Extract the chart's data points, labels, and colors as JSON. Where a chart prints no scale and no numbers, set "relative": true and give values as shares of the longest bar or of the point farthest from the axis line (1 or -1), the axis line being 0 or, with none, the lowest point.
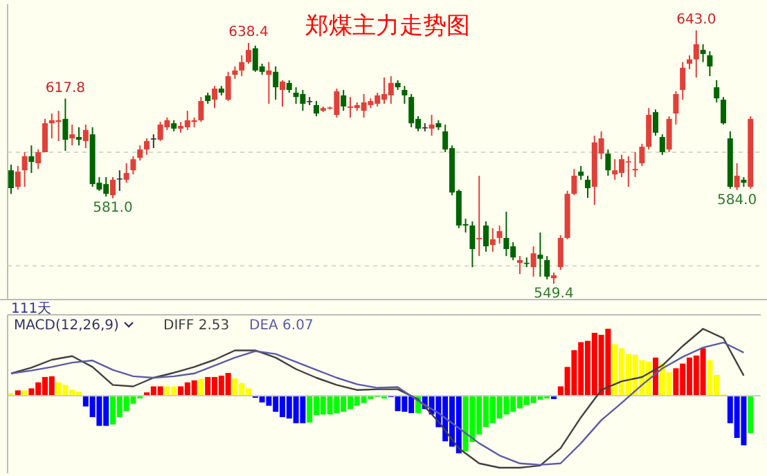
{
  "chart_data": [
    {
      "type": "candlestick",
      "title": "郑煤主力走势图",
      "grid": "y",
      "yticks": [
        {
          "value": 598,
          "label": null
        },
        {
          "value": 556,
          "label": null
        }
      ],
      "categories": [
        null,
        null,
        null,
        null,
        null,
        null,
        null,
        null,
        null,
        null,
        null,
        null,
        null,
        null,
        null,
        null,
        null,
        null,
        null,
        null,
        null,
        null,
        null,
        null,
        null,
        null,
        null,
        null,
        null,
        null,
        null,
        null,
        null,
        null,
        null,
        null,
        null,
        null,
        null,
        null,
        null,
        null,
        null,
        null,
        null,
        null,
        null,
        null,
        null,
        null,
        null,
        null,
        null,
        null,
        null,
        null,
        null,
        null,
        null,
        null,
        null,
        null,
        null,
        null,
        null,
        null,
        null,
        null,
        null,
        null,
        null,
        null,
        null,
        null,
        null,
        null,
        null,
        null,
        null,
        null,
        null,
        null,
        null,
        null,
        null,
        null,
        null,
        null,
        null,
        null,
        null,
        null,
        null,
        null,
        null,
        null,
        null,
        null,
        null,
        null,
        null,
        null,
        null,
        null,
        null,
        null,
        null,
        null,
        null,
        null
      ],
      "ohlc": [
        [
          591.3,
          593.4,
          582.6,
          584.7
        ],
        [
          585.2,
          592.9,
          584.2,
          590.8
        ],
        [
          591.3,
          598.0,
          585.2,
          596.5
        ],
        [
          596.5,
          600.5,
          590.3,
          594.4
        ],
        [
          593.9,
          599.0,
          591.8,
          598.0
        ],
        [
          598.0,
          610.3,
          598.0,
          608.7
        ],
        [
          608.7,
          612.3,
          603.1,
          609.8
        ],
        [
          609.2,
          613.3,
          602.1,
          609.8
        ],
        [
          610.3,
          617.8,
          598.5,
          602.6
        ],
        [
          603.1,
          608.2,
          600.5,
          604.6
        ],
        [
          603.6,
          607.2,
          600.5,
          602.6
        ],
        [
          602.1,
          608.2,
          599.5,
          606.2
        ],
        [
          604.6,
          607.2,
          585.2,
          586.2
        ],
        [
          586.7,
          588.8,
          583.7,
          584.2
        ],
        [
          586.2,
          588.8,
          581.6,
          582.6
        ],
        [
          582.1,
          588.8,
          581.0,
          587.8
        ],
        [
          588.3,
          591.3,
          583.7,
          588.3
        ],
        [
          587.8,
          593.9,
          586.7,
          590.3
        ],
        [
          591.3,
          596.5,
          589.8,
          595.4
        ],
        [
          595.9,
          600.5,
          594.9,
          599.0
        ],
        [
          599.0,
          603.1,
          597.0,
          602.1
        ],
        [
          603.1,
          604.6,
          599.5,
          603.1
        ],
        [
          602.6,
          609.2,
          602.1,
          608.2
        ],
        [
          607.2,
          610.8,
          606.2,
          609.8
        ],
        [
          608.7,
          609.8,
          605.7,
          606.7
        ],
        [
          606.7,
          609.2,
          605.2,
          607.7
        ],
        [
          607.2,
          613.3,
          606.2,
          609.8
        ],
        [
          609.2,
          610.8,
          607.2,
          609.8
        ],
        [
          609.8,
          618.4,
          609.2,
          616.9
        ],
        [
          619.0,
          620.0,
          615.9,
          616.9
        ],
        [
          617.4,
          622.5,
          614.3,
          621.5
        ],
        [
          621.5,
          622.5,
          619.0,
          620.0
        ],
        [
          617.4,
          627.7,
          616.9,
          626.1
        ],
        [
          626.6,
          629.7,
          625.1,
          628.2
        ],
        [
          628.2,
          633.8,
          626.1,
          631.3
        ],
        [
          631.3,
          638.4,
          630.7,
          635.8
        ],
        [
          636.4,
          637.4,
          627.7,
          628.2
        ],
        [
          629.7,
          630.7,
          626.6,
          627.7
        ],
        [
          626.6,
          631.3,
          615.9,
          628.2
        ],
        [
          627.7,
          629.7,
          617.4,
          622.0
        ],
        [
          621.0,
          624.6,
          614.9,
          624.1
        ],
        [
          623.6,
          624.6,
          620.0,
          621.0
        ],
        [
          620.0,
          622.0,
          615.9,
          618.4
        ],
        [
          619.5,
          621.0,
          613.3,
          615.9
        ],
        [
          616.9,
          618.4,
          615.4,
          616.9
        ],
        [
          615.4,
          616.9,
          611.3,
          612.3
        ],
        [
          613.3,
          614.9,
          612.8,
          614.3
        ],
        [
          614.3,
          614.9,
          613.8,
          614.5
        ],
        [
          611.8,
          621.5,
          610.8,
          620.5
        ],
        [
          619.0,
          621.0,
          613.3,
          614.9
        ],
        [
          614.4,
          618.4,
          610.8,
          614.9
        ],
        [
          614.3,
          616.4,
          613.3,
          615.4
        ],
        [
          613.3,
          619.5,
          610.8,
          616.4
        ],
        [
          615.4,
          617.9,
          614.3,
          616.9
        ],
        [
          615.9,
          620.0,
          614.9,
          619.0
        ],
        [
          617.4,
          625.6,
          615.9,
          619.5
        ],
        [
          619.0,
          626.1,
          615.9,
          623.6
        ],
        [
          623.6,
          624.6,
          621.0,
          622.0
        ],
        [
          621.0,
          622.5,
          615.9,
          619.0
        ],
        [
          618.4,
          619.5,
          607.2,
          608.7
        ],
        [
          610.3,
          611.3,
          605.7,
          606.7
        ],
        [
          607.2,
          608.7,
          605.7,
          607.2
        ],
        [
          606.7,
          611.8,
          604.1,
          608.2
        ],
        [
          608.7,
          609.8,
          606.2,
          607.2
        ],
        [
          605.7,
          608.2,
          598.0,
          599.0
        ],
        [
          599.5,
          600.5,
          582.1,
          583.1
        ],
        [
          583.7,
          584.2,
          569.9,
          570.9
        ],
        [
          571.4,
          573.4,
          568.3,
          570.9
        ],
        [
          570.9,
          572.4,
          555.5,
          562.2
        ],
        [
          565.8,
          589.3,
          559.6,
          566.3
        ],
        [
          570.9,
          572.4,
          561.2,
          563.2
        ],
        [
          563.7,
          569.9,
          561.2,
          565.8
        ],
        [
          566.3,
          570.9,
          564.2,
          568.8
        ],
        [
          566.3,
          576.0,
          559.6,
          562.2
        ],
        [
          563.2,
          564.7,
          558.1,
          559.1
        ],
        [
          557.1,
          559.6,
          553.0,
          558.1
        ],
        [
          557.1,
          559.1,
          555.5,
          556.9
        ],
        [
          555.5,
          563.2,
          552.0,
          560.6
        ],
        [
          560.1,
          568.3,
          552.0,
          558.6
        ],
        [
          558.1,
          559.6,
          551.0,
          552.0
        ],
        [
          551.4,
          553.5,
          549.4,
          552.5
        ],
        [
          555.5,
          567.3,
          554.5,
          566.3
        ],
        [
          566.3,
          583.7,
          565.8,
          582.6
        ],
        [
          582.6,
          591.8,
          582.1,
          589.3
        ],
        [
          590.8,
          592.9,
          587.8,
          589.3
        ],
        [
          587.8,
          589.3,
          581.1,
          584.7
        ],
        [
          585.2,
          604.1,
          578.5,
          601.6
        ],
        [
          597.5,
          605.7,
          595.4,
          603.1
        ],
        [
          597.5,
          599.0,
          589.3,
          591.3
        ],
        [
          589.8,
          595.4,
          587.8,
          591.3
        ],
        [
          590.3,
          597.0,
          588.8,
          595.4
        ],
        [
          594.4,
          596.5,
          585.2,
          594.6
        ],
        [
          591.3,
          598.0,
          588.8,
          591.8
        ],
        [
          593.9,
          601.1,
          592.9,
          600.0
        ],
        [
          600.0,
          614.3,
          599.0,
          611.8
        ],
        [
          612.8,
          613.8,
          604.1,
          605.2
        ],
        [
          603.6,
          604.6,
          597.0,
          598.0
        ],
        [
          599.0,
          611.3,
          598.0,
          610.3
        ],
        [
          612.3,
          620.5,
          608.2,
          619.5
        ],
        [
          621.0,
          631.3,
          617.4,
          629.2
        ],
        [
          630.7,
          633.8,
          628.7,
          632.3
        ],
        [
          632.3,
          643.0,
          625.6,
          637.9
        ],
        [
          635.8,
          637.9,
          631.3,
          634.3
        ],
        [
          633.8,
          635.3,
          626.1,
          629.7
        ],
        [
          622.0,
          624.6,
          616.4,
          617.9
        ],
        [
          617.4,
          618.4,
          608.2,
          608.7
        ],
        [
          603.1,
          605.7,
          584.5,
          585.2
        ],
        [
          585.0,
          593.9,
          584.0,
          589.3
        ],
        [
          587.8,
          588.8,
          585.2,
          586.7
        ],
        [
          585.2,
          611.3,
          584.5,
          610.3
        ]
      ],
      "annotations": [
        {
          "text": "617.8",
          "y": 617.8
        },
        {
          "text": "581.0",
          "y": 581.0
        },
        {
          "text": "638.4",
          "y": 638.4
        },
        {
          "text": "549.4",
          "y": 549.4
        },
        {
          "text": "643.0",
          "y": 643.0
        },
        {
          "text": "584.0",
          "y": 584.0
        },
        "111天"
      ]
    },
    {
      "type": "bar",
      "relative": true,
      "categories": [
        null,
        null,
        null,
        null,
        null,
        null,
        null,
        null,
        null,
        null,
        null,
        null,
        null,
        null,
        null,
        null,
        null,
        null,
        null,
        null,
        null,
        null,
        null,
        null,
        null,
        null,
        null,
        null,
        null,
        null,
        null,
        null,
        null,
        null,
        null,
        null,
        null,
        null,
        null,
        null,
        null,
        null,
        null,
        null,
        null,
        null,
        null,
        null,
        null,
        null,
        null,
        null,
        null,
        null,
        null,
        null,
        null,
        null,
        null,
        null,
        null,
        null,
        null,
        null,
        null,
        null,
        null,
        null,
        null,
        null,
        null,
        null,
        null,
        null,
        null,
        null,
        null,
        null,
        null,
        null,
        null,
        null,
        null,
        null,
        null,
        null,
        null,
        null,
        null,
        null,
        null,
        null,
        null,
        null,
        null,
        null,
        null,
        null,
        null,
        null,
        null,
        null,
        null,
        null,
        null,
        null,
        null,
        null,
        null,
        null
      ],
      "values": [
        0.04,
        0.08,
        0.08,
        0.11,
        0.2,
        0.28,
        0.29,
        0.2,
        0.16,
        0.09,
        0.06,
        -0.16,
        -0.32,
        -0.45,
        -0.45,
        -0.43,
        -0.32,
        -0.23,
        -0.12,
        -0.04,
        0.05,
        0.14,
        0.14,
        0.14,
        0.14,
        0.14,
        0.2,
        0.23,
        0.25,
        0.28,
        0.28,
        0.3,
        0.34,
        0.26,
        0.19,
        0.11,
        -0.03,
        -0.1,
        -0.15,
        -0.24,
        -0.32,
        -0.34,
        -0.41,
        -0.41,
        -0.4,
        -0.29,
        -0.28,
        -0.28,
        -0.26,
        -0.24,
        -0.2,
        -0.15,
        -0.11,
        -0.05,
        -0.02,
        -0.04,
        -0.02,
        -0.23,
        -0.24,
        -0.26,
        -0.26,
        -0.2,
        -0.28,
        -0.47,
        -0.68,
        -0.76,
        -0.86,
        -0.83,
        -0.69,
        -0.58,
        -0.47,
        -0.41,
        -0.34,
        -0.28,
        -0.24,
        -0.19,
        -0.14,
        -0.11,
        -0.06,
        -0.04,
        -0.05,
        0.14,
        0.43,
        0.68,
        0.8,
        0.82,
        0.94,
        0.91,
        1,
        0.77,
        0.71,
        0.62,
        0.61,
        0.53,
        0.51,
        0.57,
        0.48,
        0.35,
        0.41,
        0.48,
        0.57,
        0.6,
        0.71,
        0.53,
        0.31,
        0.02,
        -0.41,
        -0.63,
        -0.74,
        -0.56
      ],
      "colors": [
        "#ffff00",
        "#ff0000",
        "#ffff00",
        "#ff0000",
        "#ff0000",
        "#ff0000",
        "#ff0000",
        "#ffff00",
        "#ffff00",
        "#ffff00",
        "#ffff00",
        "#0000ff",
        "#0000ff",
        "#0000ff",
        "#0000ff",
        "#00ff00",
        "#00ff00",
        "#00ff00",
        "#00ff00",
        "#00ff00",
        "#ff0000",
        "#ff0000",
        "#ff0000",
        "#ffff00",
        "#ffff00",
        "#ff0000",
        "#ff0000",
        "#ff0000",
        "#ffff00",
        "#ff0000",
        "#ff0000",
        "#ff0000",
        "#ff0000",
        "#ffff00",
        "#ffff00",
        "#ffff00",
        "#0000ff",
        "#0000ff",
        "#0000ff",
        "#0000ff",
        "#0000ff",
        "#0000ff",
        "#0000ff",
        "#0000ff",
        "#00ff00",
        "#00ff00",
        "#00ff00",
        "#00ff00",
        "#00ff00",
        "#00ff00",
        "#00ff00",
        "#00ff00",
        "#00ff00",
        "#00ff00",
        "#00ff00",
        "#00ff00",
        "#0000ff",
        "#0000ff",
        "#0000ff",
        "#0000ff",
        "#00ff00",
        "#0000ff",
        "#0000ff",
        "#0000ff",
        "#0000ff",
        "#0000ff",
        "#0000ff",
        "#00ff00",
        "#00ff00",
        "#00ff00",
        "#00ff00",
        "#00ff00",
        "#00ff00",
        "#00ff00",
        "#00ff00",
        "#00ff00",
        "#00ff00",
        "#00ff00",
        "#00ff00",
        "#00ff00",
        "#0000ff",
        "#ff0000",
        "#ff0000",
        "#ff0000",
        "#ff0000",
        "#ff0000",
        "#ff0000",
        "#ff0000",
        "#ff0000",
        "#ffff00",
        "#ffff00",
        "#ffff00",
        "#ffff00",
        "#ffff00",
        "#ffff00",
        "#ff0000",
        "#ffff00",
        "#ffff00",
        "#ff0000",
        "#ff0000",
        "#ff0000",
        "#ff0000",
        "#ff0000",
        "#ffff00",
        "#ffff00",
        "#ffff00",
        "#0000ff",
        "#0000ff",
        "#0000ff",
        "#00ff00"
      ],
      "annotations": [
        "MACD(12,26,9)"
      ]
    },
    {
      "type": "line",
      "relative": true,
      "categories": [
        null,
        null,
        null,
        null,
        null,
        null,
        null,
        null,
        null,
        null,
        null,
        null,
        null,
        null,
        null,
        null,
        null,
        null,
        null,
        null,
        null,
        null,
        null,
        null,
        null,
        null,
        null,
        null,
        null,
        null,
        null,
        null,
        null,
        null,
        null,
        null,
        null
      ],
      "series": [
        {
          "color": "#404040",
          "values": [
            0.31,
            0.39,
            0.5,
            0.55,
            0.4,
            0.15,
            0.13,
            0.25,
            0.32,
            0.4,
            0.5,
            0.63,
            0.63,
            0.53,
            0.37,
            0.25,
            0.15,
            0.08,
            0.09,
            0.09,
            -0.05,
            -0.36,
            -0.73,
            -0.94,
            -1,
            -1,
            -0.97,
            -0.73,
            -0.3,
            0.08,
            0.2,
            0.26,
            0.42,
            0.69,
            0.93,
            0.8,
            0.28
          ]
        },
        {
          "color": "#5b5ba8",
          "values": [
            0.31,
            0.35,
            0.4,
            0.46,
            0.49,
            0.36,
            0.27,
            0.25,
            0.27,
            0.31,
            0.42,
            0.53,
            0.62,
            0.58,
            0.47,
            0.36,
            0.25,
            0.16,
            0.11,
            0.12,
            -0.07,
            -0.24,
            -0.45,
            -0.66,
            -0.83,
            -0.94,
            -0.96,
            -0.94,
            -0.66,
            -0.34,
            -0.1,
            0.15,
            0.38,
            0.54,
            0.67,
            0.74,
            0.6
          ]
        }
      ],
      "annotations": [
        "DIFF 2.53",
        "DEA 6.07"
      ]
    }
  ]
}
